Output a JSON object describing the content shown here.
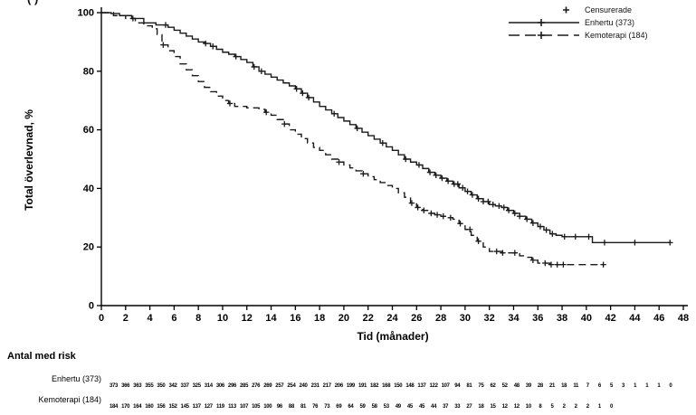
{
  "corner_mark": "( )",
  "chart_data": {
    "type": "line",
    "subtype": "kaplan-meier",
    "title": "",
    "xlabel": "Tid (månader)",
    "ylabel": "Total överlevnad, %",
    "xlim": [
      0,
      48
    ],
    "ylim": [
      0,
      100
    ],
    "xticks": [
      0,
      2,
      4,
      6,
      8,
      10,
      12,
      14,
      16,
      18,
      20,
      22,
      24,
      26,
      28,
      30,
      32,
      34,
      36,
      38,
      40,
      42,
      44,
      46,
      48
    ],
    "yticks": [
      0,
      20,
      40,
      60,
      80,
      100
    ],
    "grid": false,
    "legend_position": "top-right",
    "legend": [
      {
        "label": "Censurerade",
        "marker": "plus",
        "line": "none"
      },
      {
        "label": "Enhertu (373)",
        "marker": "plus",
        "line": "solid"
      },
      {
        "label": "Kemoterapi (184)",
        "marker": "plus",
        "line": "dashed"
      }
    ],
    "line_color": "#1a1a1a",
    "series": [
      {
        "name": "Enhertu (373)",
        "style": "solid",
        "points": [
          [
            0,
            100
          ],
          [
            0.8,
            99.7
          ],
          [
            1.5,
            99
          ],
          [
            2.5,
            98
          ],
          [
            3.5,
            96.5
          ],
          [
            4.5,
            95.8
          ],
          [
            5.5,
            95
          ],
          [
            6,
            94
          ],
          [
            6.5,
            93
          ],
          [
            7,
            92
          ],
          [
            7.5,
            91
          ],
          [
            8,
            90
          ],
          [
            8.5,
            89.5
          ],
          [
            9,
            88.5
          ],
          [
            9.5,
            87.5
          ],
          [
            10,
            86.5
          ],
          [
            10.5,
            85.8
          ],
          [
            11,
            85
          ],
          [
            11.5,
            84
          ],
          [
            12,
            83
          ],
          [
            12.5,
            81.5
          ],
          [
            13,
            80
          ],
          [
            13.5,
            79
          ],
          [
            14,
            78
          ],
          [
            14.5,
            77
          ],
          [
            15,
            76
          ],
          [
            15.5,
            75
          ],
          [
            16,
            74
          ],
          [
            16.5,
            72.5
          ],
          [
            17,
            71
          ],
          [
            17.5,
            69.5
          ],
          [
            18,
            68
          ],
          [
            18.5,
            66.8
          ],
          [
            19,
            65.5
          ],
          [
            19.5,
            64.2
          ],
          [
            20,
            63
          ],
          [
            20.5,
            61.8
          ],
          [
            21,
            60.5
          ],
          [
            21.5,
            59.2
          ],
          [
            22,
            58
          ],
          [
            22.5,
            56.8
          ],
          [
            23,
            55.5
          ],
          [
            23.5,
            54.2
          ],
          [
            24,
            53
          ],
          [
            24.5,
            51.5
          ],
          [
            25,
            50
          ],
          [
            25.5,
            49
          ],
          [
            26,
            48
          ],
          [
            26.5,
            46.8
          ],
          [
            27,
            45.5
          ],
          [
            27.5,
            44.5
          ],
          [
            28,
            43.5
          ],
          [
            28.5,
            42.5
          ],
          [
            29,
            41.5
          ],
          [
            29.5,
            40.2
          ],
          [
            30,
            39
          ],
          [
            30.5,
            37.8
          ],
          [
            31,
            36.5
          ],
          [
            31.5,
            35.5
          ],
          [
            32,
            34.5
          ],
          [
            32.5,
            34
          ],
          [
            33,
            33.5
          ],
          [
            33.5,
            32.5
          ],
          [
            34,
            31.5
          ],
          [
            34.5,
            30.5
          ],
          [
            35,
            29.5
          ],
          [
            35.5,
            28.2
          ],
          [
            36,
            27
          ],
          [
            36.5,
            25.8
          ],
          [
            37,
            24.5
          ],
          [
            37.5,
            24
          ],
          [
            38,
            23.5
          ],
          [
            40.5,
            21.5
          ],
          [
            47,
            21.5
          ]
        ],
        "censor_times": [
          5.3,
          8.6,
          9.2,
          11.1,
          12.6,
          13.2,
          16.1,
          16.6,
          17.1,
          19.2,
          21.1,
          23.2,
          25.1,
          26.2,
          27.1,
          27.6,
          28.1,
          28.6,
          29.1,
          29.4,
          29.8,
          30.2,
          30.6,
          31.1,
          31.5,
          31.9,
          32.3,
          32.8,
          33.2,
          33.6,
          34.1,
          34.5,
          35.1,
          35.6,
          36.2,
          36.7,
          37.2,
          38.2,
          39.1,
          40.2,
          41.5,
          44.0,
          46.9
        ]
      },
      {
        "name": "Kemoterapi (184)",
        "style": "dashed",
        "points": [
          [
            0,
            100
          ],
          [
            1,
            99
          ],
          [
            2,
            98
          ],
          [
            2.8,
            96.5
          ],
          [
            3.5,
            95.5
          ],
          [
            4.2,
            94.5
          ],
          [
            4.6,
            92.5
          ],
          [
            5,
            89
          ],
          [
            5.5,
            87
          ],
          [
            6,
            85
          ],
          [
            6.5,
            82.5
          ],
          [
            7,
            80.5
          ],
          [
            7.5,
            78.5
          ],
          [
            8,
            76.5
          ],
          [
            8.5,
            74.5
          ],
          [
            9,
            73
          ],
          [
            9.5,
            71.5
          ],
          [
            10,
            70
          ],
          [
            10.5,
            69
          ],
          [
            11,
            68
          ],
          [
            12,
            67.5
          ],
          [
            13,
            67
          ],
          [
            13.5,
            66
          ],
          [
            14,
            65
          ],
          [
            14.5,
            63.5
          ],
          [
            15,
            62
          ],
          [
            15.5,
            60
          ],
          [
            16,
            58.5
          ],
          [
            16.5,
            57
          ],
          [
            17,
            55.5
          ],
          [
            17.5,
            54
          ],
          [
            18,
            53
          ],
          [
            18.5,
            51.5
          ],
          [
            19,
            50
          ],
          [
            19.5,
            49
          ],
          [
            20,
            48
          ],
          [
            20.5,
            47
          ],
          [
            21,
            46
          ],
          [
            21.5,
            45
          ],
          [
            22,
            44
          ],
          [
            22.5,
            43
          ],
          [
            23,
            42
          ],
          [
            23.5,
            41
          ],
          [
            24,
            40
          ],
          [
            24.5,
            38.5
          ],
          [
            25,
            37
          ],
          [
            25.5,
            35
          ],
          [
            26,
            33.5
          ],
          [
            26.5,
            32.5
          ],
          [
            27,
            31.5
          ],
          [
            27.5,
            31
          ],
          [
            28,
            30.5
          ],
          [
            28.5,
            30
          ],
          [
            29,
            29.5
          ],
          [
            29.5,
            28
          ],
          [
            30,
            26
          ],
          [
            30.5,
            24
          ],
          [
            31,
            22
          ],
          [
            31.5,
            20
          ],
          [
            32,
            18.5
          ],
          [
            33,
            18
          ],
          [
            34.5,
            17
          ],
          [
            35,
            16.5
          ],
          [
            35.5,
            15.5
          ],
          [
            36,
            14.5
          ],
          [
            37,
            14
          ],
          [
            41.4,
            14
          ]
        ],
        "censor_times": [
          2.6,
          5.1,
          10.6,
          13.6,
          15.1,
          19.6,
          21.6,
          25.6,
          26.1,
          26.6,
          27.2,
          27.7,
          28.2,
          28.8,
          29.6,
          30.4,
          31.1,
          32.6,
          33.1,
          34.1,
          35.6,
          36.6,
          37.1,
          37.6,
          38.1,
          41.4
        ]
      }
    ]
  },
  "risk_table": {
    "title": "Antal med risk",
    "rows": [
      {
        "label": "Enhertu (373)",
        "values": [
          373,
          366,
          363,
          355,
          350,
          342,
          337,
          325,
          314,
          306,
          296,
          285,
          276,
          269,
          257,
          254,
          240,
          231,
          217,
          206,
          199,
          191,
          182,
          168,
          150,
          148,
          137,
          122,
          107,
          94,
          81,
          75,
          62,
          52,
          48,
          39,
          28,
          21,
          18,
          11,
          7,
          6,
          5,
          3,
          1,
          1,
          1,
          0
        ]
      },
      {
        "label": "Kemoterapi (184)",
        "values": [
          184,
          170,
          164,
          160,
          156,
          152,
          145,
          137,
          127,
          119,
          113,
          107,
          105,
          100,
          96,
          88,
          81,
          76,
          73,
          69,
          64,
          59,
          58,
          53,
          49,
          45,
          45,
          44,
          37,
          33,
          27,
          18,
          15,
          12,
          12,
          10,
          8,
          5,
          2,
          2,
          2,
          1,
          0
        ]
      }
    ]
  }
}
